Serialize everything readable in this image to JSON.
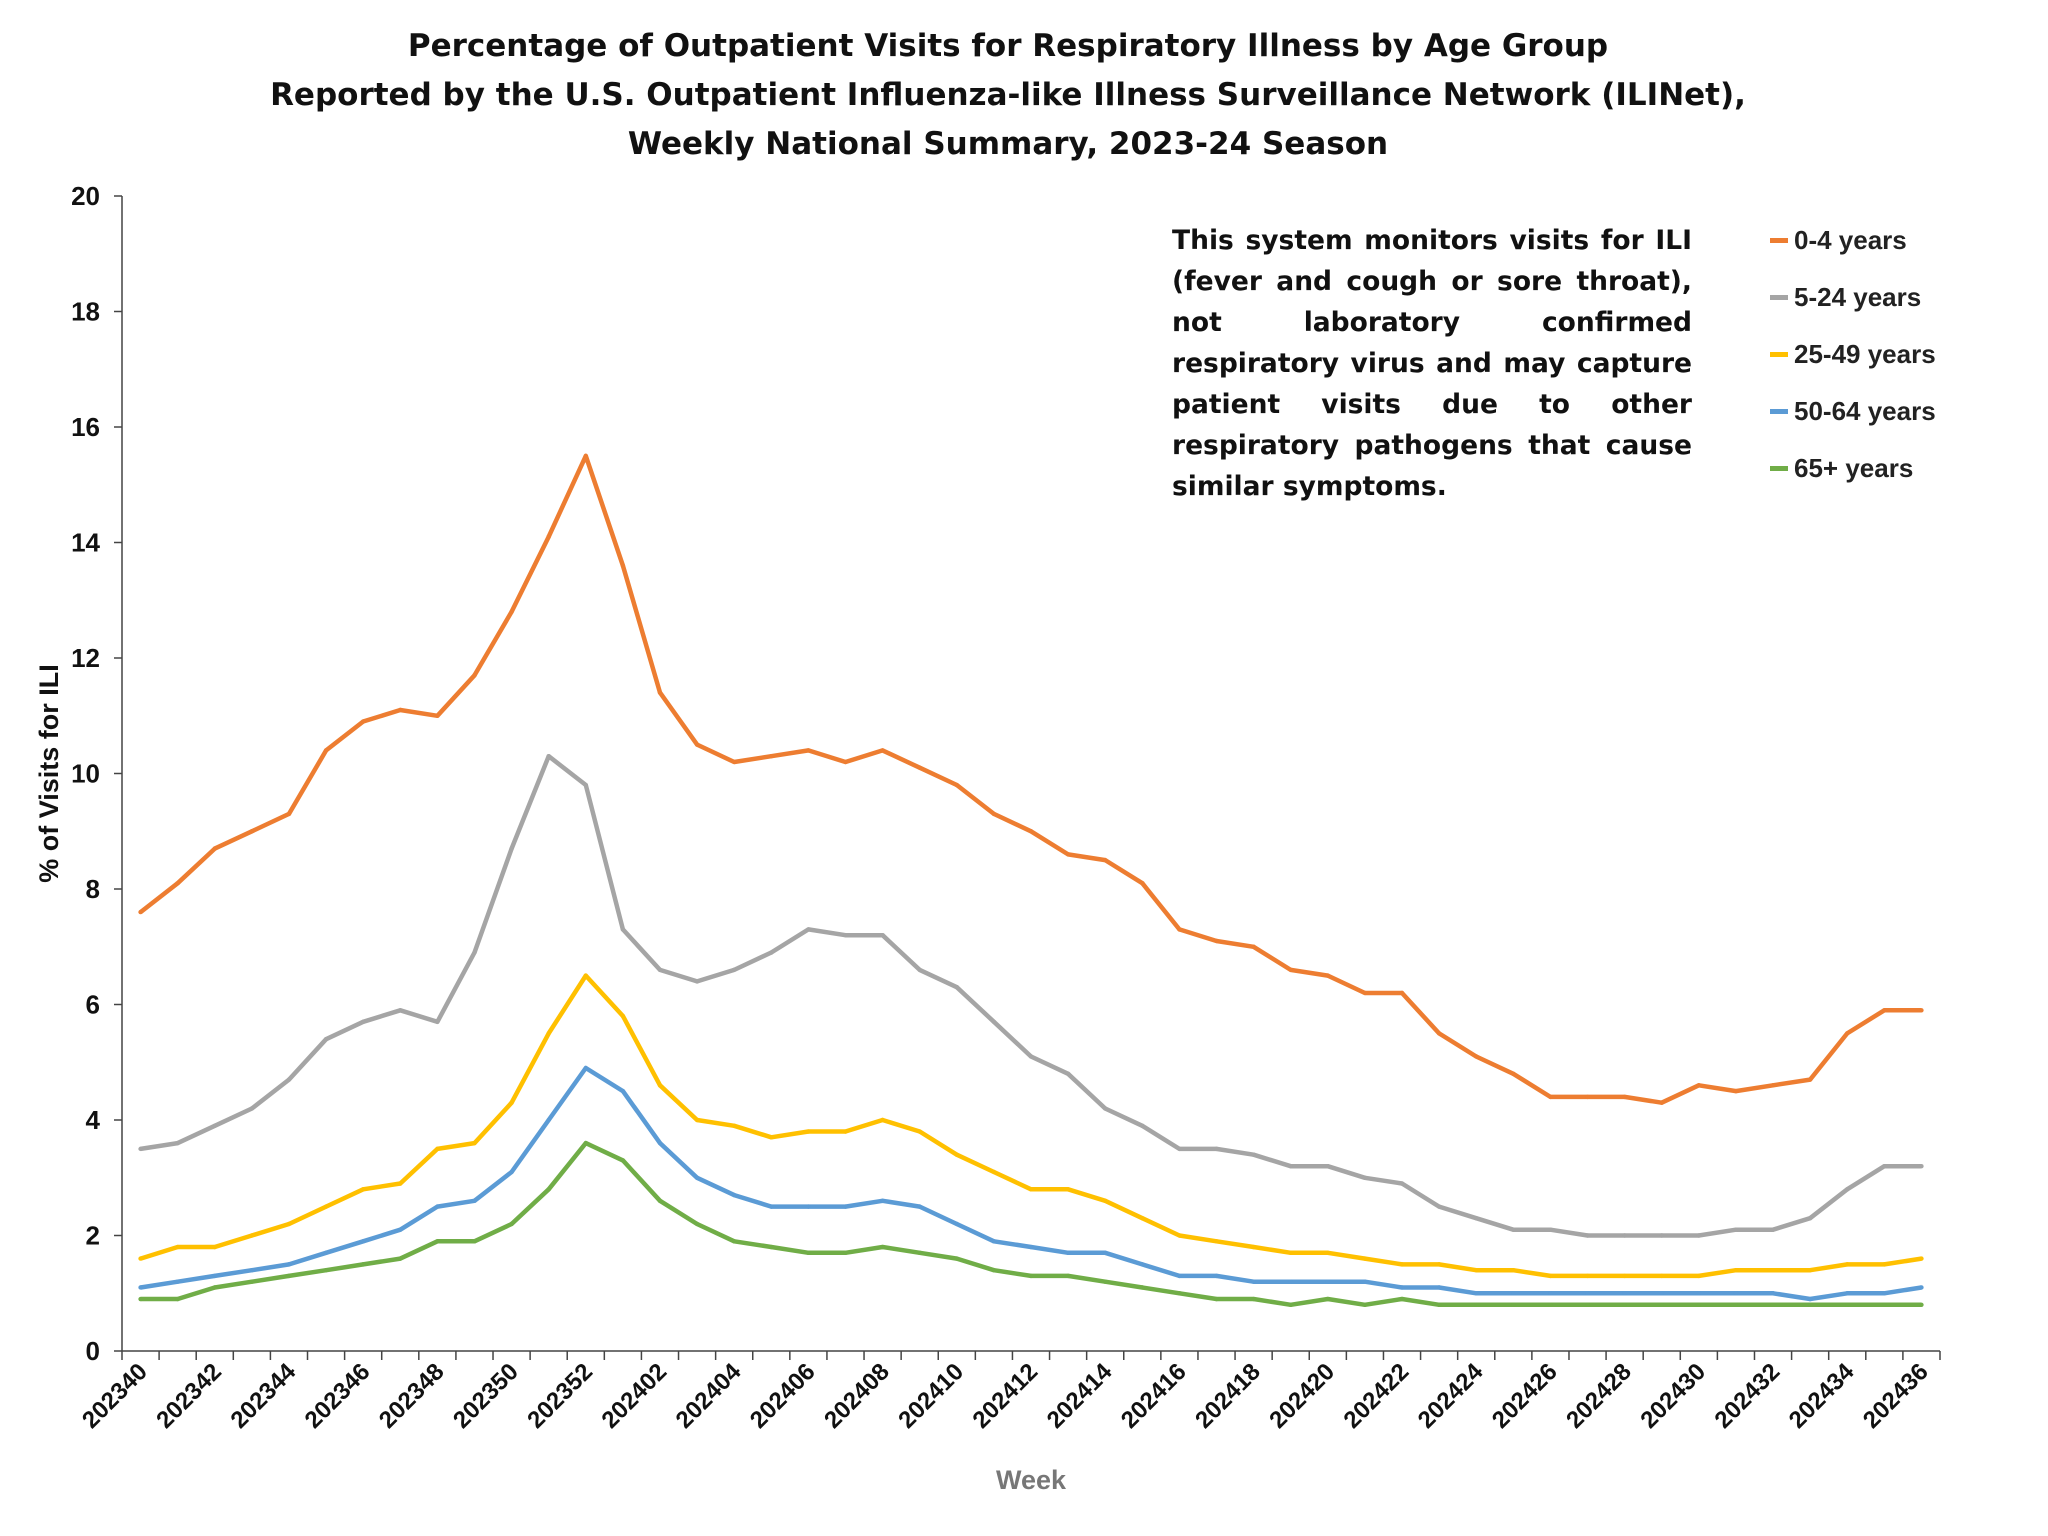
{
  "chart_data": {
    "type": "line",
    "title": [
      "Percentage of Outpatient Visits for Respiratory Illness by Age Group",
      "Reported by the U.S. Outpatient Influenza-like Illness Surveillance Network (ILINet),",
      "Weekly National Summary, 2023-24 Season"
    ],
    "annotation": "This system monitors visits for ILI (fever and cough or sore throat), not laboratory confirmed respiratory virus and may capture patient visits due to other respiratory pathogens that cause similar symptoms.",
    "xlabel": "Week",
    "ylabel": "% of Visits for ILI",
    "ylim": [
      0,
      20
    ],
    "yticks": [
      "0",
      "2",
      "4",
      "6",
      "8",
      "10",
      "12",
      "14",
      "16",
      "18",
      "20"
    ],
    "grid": false,
    "legend_position": "top-right",
    "categories": [
      "202340",
      "202341",
      "202342",
      "202343",
      "202344",
      "202345",
      "202346",
      "202347",
      "202348",
      "202349",
      "202350",
      "202351",
      "202352",
      "202401",
      "202402",
      "202403",
      "202404",
      "202405",
      "202406",
      "202407",
      "202408",
      "202409",
      "202410",
      "202411",
      "202412",
      "202413",
      "202414",
      "202415",
      "202416",
      "202417",
      "202418",
      "202419",
      "202420",
      "202421",
      "202422",
      "202423",
      "202424",
      "202425",
      "202426",
      "202427",
      "202428",
      "202429",
      "202430",
      "202431",
      "202432",
      "202433",
      "202434",
      "202435",
      "202436"
    ],
    "tick_labels": [
      "202340",
      "202342",
      "202344",
      "202346",
      "202348",
      "202350",
      "202352",
      "202402",
      "202404",
      "202406",
      "202408",
      "202410",
      "202412",
      "202414",
      "202416",
      "202418",
      "202420",
      "202422",
      "202424",
      "202426",
      "202428",
      "202430",
      "202432",
      "202434",
      "202436"
    ],
    "series": [
      {
        "name": "0-4 years",
        "color": "#ED7D31",
        "values": [
          7.6,
          8.1,
          8.7,
          9.0,
          9.3,
          10.4,
          10.9,
          11.1,
          11.0,
          11.7,
          12.8,
          14.1,
          15.5,
          13.6,
          11.4,
          10.5,
          10.2,
          10.3,
          10.4,
          10.2,
          10.4,
          10.1,
          9.8,
          9.3,
          9.0,
          8.6,
          8.5,
          8.1,
          7.3,
          7.1,
          7.0,
          6.6,
          6.5,
          6.2,
          6.2,
          5.5,
          5.1,
          4.8,
          4.4,
          4.4,
          4.4,
          4.3,
          4.6,
          4.5,
          4.6,
          4.7,
          5.5,
          5.9,
          5.9
        ]
      },
      {
        "name": "5-24 years",
        "color": "#A5A5A5",
        "values": [
          3.5,
          3.6,
          3.9,
          4.2,
          4.7,
          5.4,
          5.7,
          5.9,
          5.7,
          6.9,
          8.7,
          10.3,
          9.8,
          7.3,
          6.6,
          6.4,
          6.6,
          6.9,
          7.3,
          7.2,
          7.2,
          6.6,
          6.3,
          5.7,
          5.1,
          4.8,
          4.2,
          3.9,
          3.5,
          3.5,
          3.4,
          3.2,
          3.2,
          3.0,
          2.9,
          2.5,
          2.3,
          2.1,
          2.1,
          2.0,
          2.0,
          2.0,
          2.0,
          2.1,
          2.1,
          2.3,
          2.8,
          3.2,
          3.2
        ]
      },
      {
        "name": "25-49 years",
        "color": "#FFC000",
        "values": [
          1.6,
          1.8,
          1.8,
          2.0,
          2.2,
          2.5,
          2.8,
          2.9,
          3.5,
          3.6,
          4.3,
          5.5,
          6.5,
          5.8,
          4.6,
          4.0,
          3.9,
          3.7,
          3.8,
          3.8,
          4.0,
          3.8,
          3.4,
          3.1,
          2.8,
          2.8,
          2.6,
          2.3,
          2.0,
          1.9,
          1.8,
          1.7,
          1.7,
          1.6,
          1.5,
          1.5,
          1.4,
          1.4,
          1.3,
          1.3,
          1.3,
          1.3,
          1.3,
          1.4,
          1.4,
          1.4,
          1.5,
          1.5,
          1.6
        ]
      },
      {
        "name": "50-64 years",
        "color": "#5B9BD5",
        "values": [
          1.1,
          1.2,
          1.3,
          1.4,
          1.5,
          1.7,
          1.9,
          2.1,
          2.5,
          2.6,
          3.1,
          4.0,
          4.9,
          4.5,
          3.6,
          3.0,
          2.7,
          2.5,
          2.5,
          2.5,
          2.6,
          2.5,
          2.2,
          1.9,
          1.8,
          1.7,
          1.7,
          1.5,
          1.3,
          1.3,
          1.2,
          1.2,
          1.2,
          1.2,
          1.1,
          1.1,
          1.0,
          1.0,
          1.0,
          1.0,
          1.0,
          1.0,
          1.0,
          1.0,
          1.0,
          0.9,
          1.0,
          1.0,
          1.1
        ]
      },
      {
        "name": "65+ years",
        "color": "#70AD47",
        "values": [
          0.9,
          0.9,
          1.1,
          1.2,
          1.3,
          1.4,
          1.5,
          1.6,
          1.9,
          1.9,
          2.2,
          2.8,
          3.6,
          3.3,
          2.6,
          2.2,
          1.9,
          1.8,
          1.7,
          1.7,
          1.8,
          1.7,
          1.6,
          1.4,
          1.3,
          1.3,
          1.2,
          1.1,
          1.0,
          0.9,
          0.9,
          0.8,
          0.9,
          0.8,
          0.9,
          0.8,
          0.8,
          0.8,
          0.8,
          0.8,
          0.8,
          0.8,
          0.8,
          0.8,
          0.8,
          0.8,
          0.8,
          0.8,
          0.8
        ]
      }
    ]
  }
}
